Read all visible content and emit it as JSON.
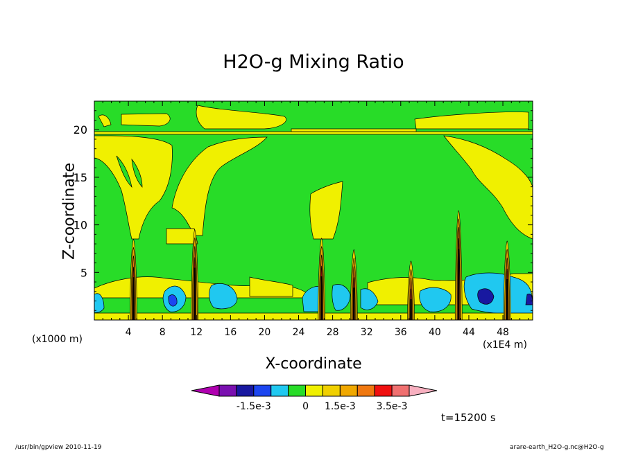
{
  "chart_data": {
    "type": "heatmap",
    "title": "H2O-g Mixing Ratio",
    "xlabel": "X-coordinate",
    "ylabel": "Z-coordinate",
    "x_unit_left": "(x1000 m)",
    "x_unit_right": "(x1E4 m)",
    "xlim": [
      0,
      51.5
    ],
    "ylim": [
      0,
      23
    ],
    "x_ticks": [
      4,
      8,
      12,
      16,
      20,
      24,
      28,
      32,
      36,
      40,
      44,
      48
    ],
    "y_ticks": [
      5,
      10,
      15,
      20
    ],
    "colorbar": {
      "colors": [
        "#b000b0",
        "#7a10b0",
        "#1818a0",
        "#1c46f0",
        "#20c8f0",
        "#28dc28",
        "#f0f000",
        "#f0d000",
        "#f0a800",
        "#f07810",
        "#f01010",
        "#f07070",
        "#f8b0c0"
      ],
      "labels": [
        "-1.5e-3",
        "0",
        "1.5e-3",
        "3.5e-3"
      ]
    },
    "time_label": "t=15200 s"
  },
  "footer": {
    "left": "/usr/bin/gpview   2010-11-19",
    "right": "arare-earth_H2O-g.nc@H2O-g"
  }
}
